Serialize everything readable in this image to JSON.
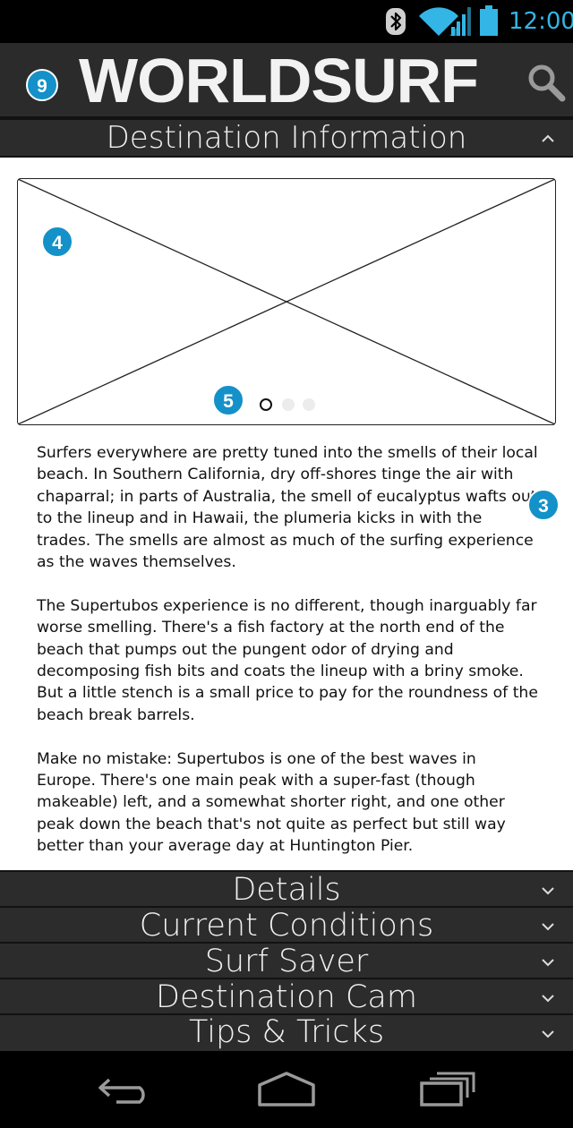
{
  "status_bar": {
    "time": "12:00",
    "icons": [
      "bluetooth-icon",
      "wifi-icon",
      "signal-icon",
      "battery-icon"
    ],
    "accent_color": "#33b5e5"
  },
  "header": {
    "logo_text": "WORLDSURF",
    "menu_badge": "9",
    "search_icon": "search-icon"
  },
  "destination_section": {
    "title": "Destination Information",
    "expanded": true
  },
  "carousel": {
    "image_badge": "4",
    "pager_badge": "5",
    "page_count": 3,
    "current_page": 1
  },
  "article": {
    "badge": "3",
    "paragraphs": [
      "Surfers everywhere are pretty tuned into the smells of their local beach. In Southern California, dry off-shores tinge the air with chaparral; in parts of Australia, the smell of eucalyptus wafts out to the lineup and in Hawaii, the plumeria kicks in with the trades. The smells are almost as much of the surfing experience as the waves themselves.",
      "The Supertubos experience is no different, though inarguably far worse smelling. There's a fish factory at the north end of the beach that pumps out the pungent odor of drying and decomposing fish bits and coats the lineup with a briny smoke. But a little stench is a small price to pay for the roundness of the beach break barrels.",
      "Make no mistake: Supertubos is one of the best waves in Europe. There's one main peak with a super-fast (though makeable) left, and a somewhat shorter right, and one other peak down the beach that's not quite as perfect but still way better than your average day at Huntington Pier."
    ]
  },
  "collapsed_sections": [
    {
      "title": "Details"
    },
    {
      "title": "Current Conditions"
    },
    {
      "title": "Surf Saver"
    },
    {
      "title": "Destination Cam"
    },
    {
      "title": "Tips & Tricks"
    }
  ],
  "nav_bar": {
    "icons": [
      "back-icon",
      "home-icon",
      "recent-apps-icon"
    ]
  },
  "colors": {
    "badge": "#1391c8",
    "header_bg": "#2b2b2b",
    "section_bg": "#2c2c2c"
  }
}
